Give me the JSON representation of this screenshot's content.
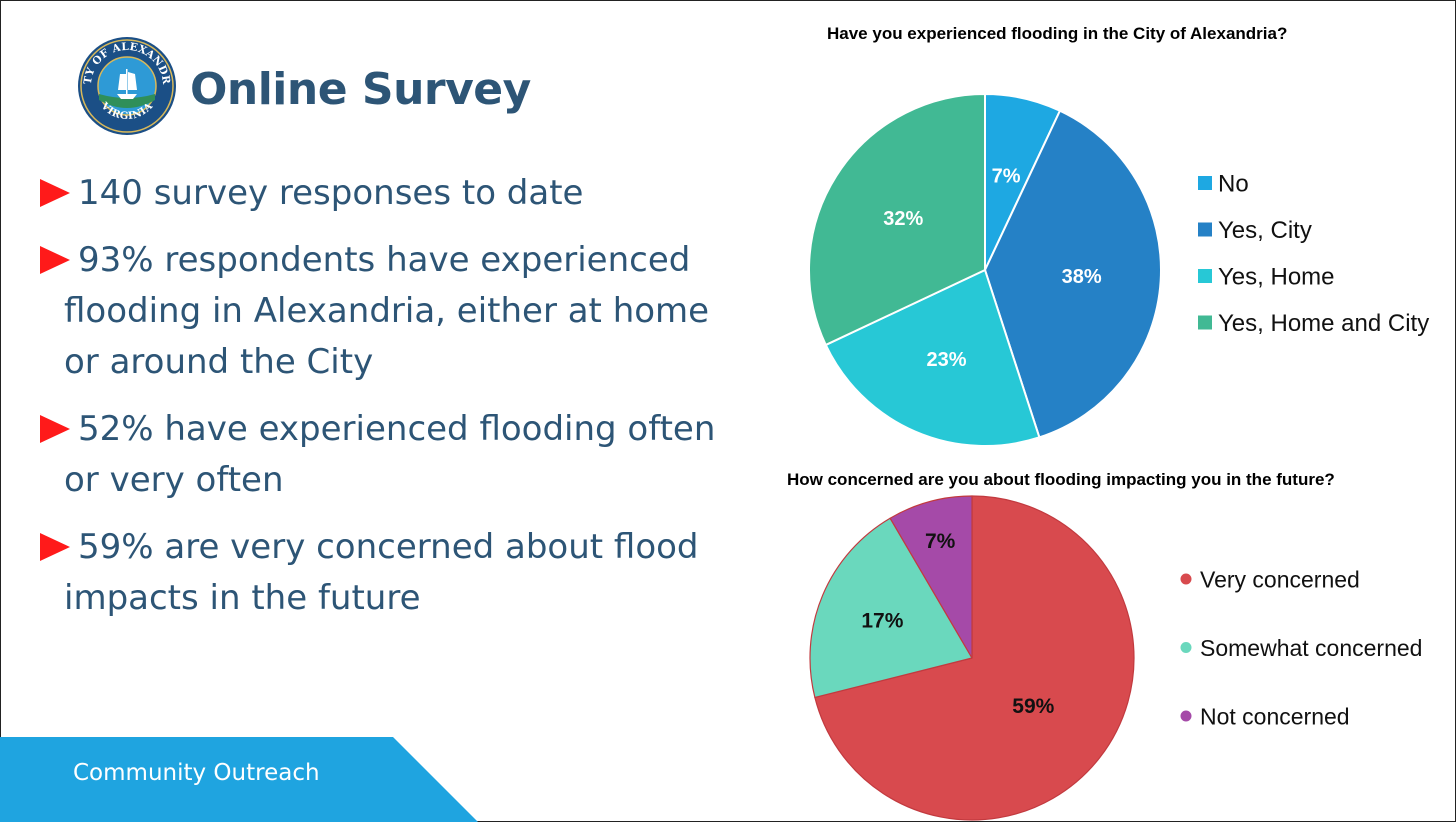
{
  "slide": {
    "title": "Online Survey",
    "seal_text": "CITY OF ALEXANDRIA VIRGINIA",
    "bullets": [
      "140 survey responses to date",
      "93% respondents have experienced flooding in Alexandria, either at home or around the City",
      "52% have experienced flooding often or very often",
      "59% are very concerned about flood impacts in the future"
    ],
    "footer": "Community Outreach"
  },
  "colors": {
    "title": "#2d5576",
    "arrow": "#ff1a1a",
    "footer_bg": "#1fa4e0"
  },
  "chart_data": [
    {
      "type": "pie",
      "title": "Have you experienced flooding in the City of Alexandria?",
      "legend_position": "right",
      "slices": [
        {
          "label": "No",
          "value": 7,
          "display": "7%",
          "color": "#1ea8e2"
        },
        {
          "label": "Yes, City",
          "value": 38,
          "display": "38%",
          "color": "#2581c6"
        },
        {
          "label": "Yes, Home",
          "value": 23,
          "display": "23%",
          "color": "#27c8d6"
        },
        {
          "label": "Yes, Home and City",
          "value": 32,
          "display": "32%",
          "color": "#41b994"
        }
      ]
    },
    {
      "type": "pie",
      "title": "How concerned are you about flooding impacting you in the future?",
      "legend_position": "right",
      "slices": [
        {
          "label": "Very concerned",
          "value": 59,
          "display": "59%",
          "color": "#d84a4e"
        },
        {
          "label": "Somewhat concerned",
          "value": 17,
          "display": "17%",
          "color": "#6ad8bd"
        },
        {
          "label": "Not concerned",
          "value": 7,
          "display": "7%",
          "color": "#a54aa8"
        }
      ]
    }
  ]
}
